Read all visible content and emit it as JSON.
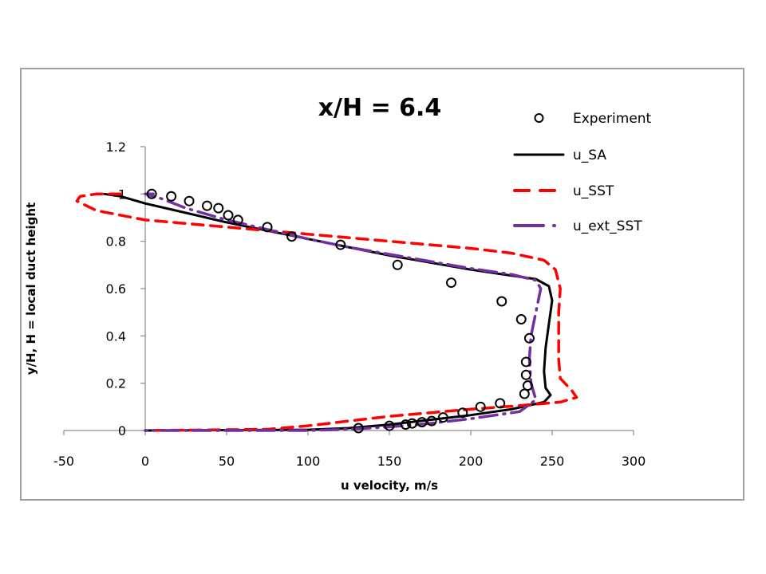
{
  "chart_data": {
    "type": "scatter",
    "title": "x/H = 6.4",
    "xlabel": "u velocity, m/s",
    "ylabel": "y/H, H = local duct height",
    "xlim": [
      -50,
      300
    ],
    "ylim": [
      0,
      1.2
    ],
    "x_ticks": [
      -50,
      0,
      50,
      100,
      150,
      200,
      250,
      300
    ],
    "x_tick_labels": [
      "-50",
      "0",
      "50",
      "100",
      "150",
      "200",
      "250",
      "300"
    ],
    "y_ticks": [
      0,
      0.2,
      0.4,
      0.6,
      0.8,
      1.0,
      1.2
    ],
    "y_tick_labels": [
      "0",
      "0.2",
      "0.4",
      "0.6",
      "0.8",
      "1",
      "1.2"
    ],
    "grid": false,
    "legend_position": "top-right",
    "series": [
      {
        "name": "Experiment",
        "style": "open-circle",
        "color": "#000000",
        "points": [
          [
            4,
            1.0
          ],
          [
            16,
            0.99
          ],
          [
            27,
            0.97
          ],
          [
            38,
            0.95
          ],
          [
            45,
            0.94
          ],
          [
            51,
            0.91
          ],
          [
            57,
            0.89
          ],
          [
            75,
            0.86
          ],
          [
            90,
            0.82
          ],
          [
            120,
            0.785
          ],
          [
            155,
            0.7
          ],
          [
            188,
            0.625
          ],
          [
            219,
            0.546
          ],
          [
            231,
            0.47
          ],
          [
            236,
            0.39
          ],
          [
            234,
            0.29
          ],
          [
            234,
            0.235
          ],
          [
            235,
            0.19
          ],
          [
            233,
            0.155
          ],
          [
            218,
            0.115
          ],
          [
            206,
            0.1
          ],
          [
            195,
            0.075
          ],
          [
            183,
            0.055
          ],
          [
            176,
            0.04
          ],
          [
            170,
            0.035
          ],
          [
            164,
            0.03
          ],
          [
            160,
            0.025
          ],
          [
            150,
            0.02
          ],
          [
            131,
            0.01
          ]
        ]
      },
      {
        "name": "u_SA",
        "style": "solid",
        "color": "#000000",
        "points": [
          [
            -25,
            1.0
          ],
          [
            -15,
            0.99
          ],
          [
            0,
            0.96
          ],
          [
            25,
            0.92
          ],
          [
            50,
            0.88
          ],
          [
            75,
            0.845
          ],
          [
            100,
            0.81
          ],
          [
            125,
            0.775
          ],
          [
            150,
            0.74
          ],
          [
            175,
            0.71
          ],
          [
            200,
            0.68
          ],
          [
            225,
            0.655
          ],
          [
            240,
            0.64
          ],
          [
            248,
            0.61
          ],
          [
            250,
            0.55
          ],
          [
            248,
            0.45
          ],
          [
            246,
            0.35
          ],
          [
            245,
            0.25
          ],
          [
            246,
            0.18
          ],
          [
            249,
            0.15
          ],
          [
            245,
            0.12
          ],
          [
            225,
            0.09
          ],
          [
            200,
            0.065
          ],
          [
            175,
            0.045
          ],
          [
            150,
            0.025
          ],
          [
            125,
            0.01
          ],
          [
            100,
            0.003
          ],
          [
            0,
            0.0
          ]
        ]
      },
      {
        "name": "u_SST",
        "style": "dashed",
        "color": "#ff0000",
        "points": [
          [
            -15,
            1.0
          ],
          [
            -30,
            1.0
          ],
          [
            -40,
            0.99
          ],
          [
            -42,
            0.97
          ],
          [
            -30,
            0.93
          ],
          [
            0,
            0.89
          ],
          [
            50,
            0.86
          ],
          [
            100,
            0.83
          ],
          [
            150,
            0.8
          ],
          [
            200,
            0.77
          ],
          [
            225,
            0.75
          ],
          [
            245,
            0.72
          ],
          [
            252,
            0.68
          ],
          [
            255,
            0.6
          ],
          [
            254,
            0.5
          ],
          [
            254,
            0.3
          ],
          [
            255,
            0.22
          ],
          [
            262,
            0.17
          ],
          [
            265,
            0.14
          ],
          [
            255,
            0.12
          ],
          [
            230,
            0.105
          ],
          [
            200,
            0.09
          ],
          [
            175,
            0.075
          ],
          [
            150,
            0.06
          ],
          [
            125,
            0.04
          ],
          [
            100,
            0.02
          ],
          [
            75,
            0.005
          ],
          [
            0,
            0.0
          ]
        ]
      },
      {
        "name": "u_ext_SST",
        "style": "dash-dot",
        "color": "#7030a0",
        "points": [
          [
            5,
            1.0
          ],
          [
            0,
            1.0
          ],
          [
            10,
            0.98
          ],
          [
            25,
            0.94
          ],
          [
            50,
            0.89
          ],
          [
            75,
            0.85
          ],
          [
            100,
            0.81
          ],
          [
            125,
            0.775
          ],
          [
            150,
            0.745
          ],
          [
            175,
            0.715
          ],
          [
            200,
            0.685
          ],
          [
            225,
            0.66
          ],
          [
            240,
            0.635
          ],
          [
            243,
            0.6
          ],
          [
            240,
            0.5
          ],
          [
            237,
            0.4
          ],
          [
            236,
            0.3
          ],
          [
            237,
            0.2
          ],
          [
            240,
            0.13
          ],
          [
            230,
            0.08
          ],
          [
            200,
            0.05
          ],
          [
            175,
            0.03
          ],
          [
            150,
            0.015
          ],
          [
            125,
            0.005
          ],
          [
            100,
            0.0
          ],
          [
            0,
            0.0
          ]
        ]
      }
    ]
  }
}
